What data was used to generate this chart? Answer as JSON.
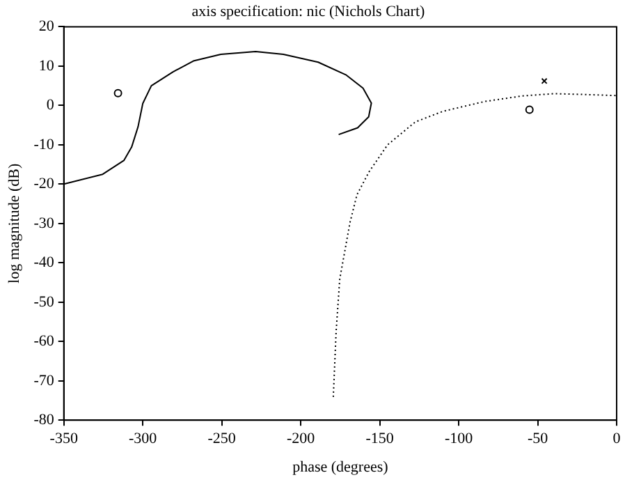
{
  "chart_data": {
    "type": "line",
    "title": "axis specification: nic (Nichols Chart)",
    "xlabel": "phase (degrees)",
    "ylabel": "log magnitude (dB)",
    "xlim": [
      -350,
      0
    ],
    "xticks": [
      -350,
      -300,
      -250,
      -200,
      -150,
      -100,
      -50,
      0
    ],
    "ylim": [
      -80,
      20
    ],
    "yticks": [
      -80,
      -70,
      -60,
      -50,
      -40,
      -30,
      -20,
      -10,
      0,
      10,
      20
    ],
    "grid": false,
    "legend": false,
    "series": [
      {
        "color": "#000000",
        "line_style": "solid",
        "marker": "none",
        "x": [
          -350,
          -325.4,
          -312,
          -307,
          -303,
          -300,
          -294.6,
          -281,
          -268,
          -250.6,
          -228.6,
          -211,
          -189,
          -171.5,
          -160.6,
          -155.3,
          -157,
          -164,
          -176
        ],
        "values": [
          -20,
          -17.5,
          -14,
          -10.5,
          -5.4,
          0.5,
          5,
          8.5,
          11.3,
          13,
          13.7,
          13,
          11,
          7.8,
          4.4,
          0.6,
          -2.9,
          -5.7,
          -7.4
        ]
      },
      {
        "color": "#000000",
        "line_style": "dotted",
        "marker": "none",
        "x": [
          -179.4,
          -177.6,
          -175.3,
          -168.8,
          -164.4,
          -156.8,
          -145,
          -127.5,
          -110,
          -83.6,
          -60,
          -39.5,
          -22,
          0
        ],
        "values": [
          -74.1,
          -57.4,
          -44.1,
          -29.7,
          -22.7,
          -16.9,
          -10,
          -4.2,
          -1.5,
          1,
          2.4,
          3,
          2.8,
          2.5
        ]
      },
      {
        "type": "scatter",
        "color": "#000000",
        "marker": "circle",
        "x": [
          -315.7,
          -55.2
        ],
        "values": [
          3.1,
          -1.1
        ]
      },
      {
        "type": "scatter",
        "color": "#000000",
        "marker": "cross",
        "x": [
          -45.8
        ],
        "values": [
          6.2
        ]
      }
    ]
  }
}
